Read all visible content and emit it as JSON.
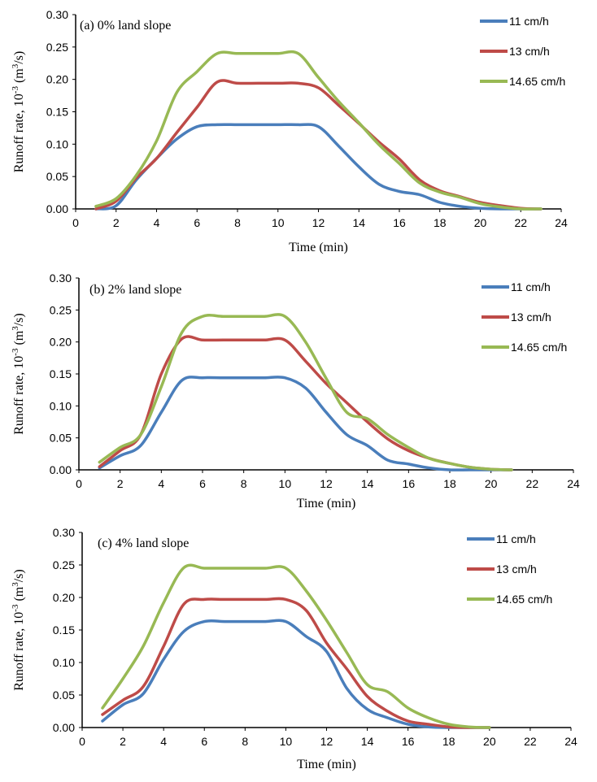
{
  "chart_data": [
    {
      "type": "line",
      "title": "(a) 0% land slope",
      "xlabel": "Time (min)",
      "ylabel": "Runoff rate, 10-3 (m3/s)",
      "xlim": [
        0,
        24
      ],
      "ylim": [
        0,
        0.3
      ],
      "xticks": [
        0,
        2,
        4,
        6,
        8,
        10,
        12,
        14,
        16,
        18,
        20,
        22,
        24
      ],
      "yticks": [
        "0.00",
        "0.05",
        "0.10",
        "0.15",
        "0.20",
        "0.25",
        "0.30"
      ],
      "legend_position": "top-right",
      "grid": false,
      "series": [
        {
          "name": "11 cm/h",
          "color": "#4a7ebb",
          "x": [
            1,
            2,
            3,
            4,
            5,
            6,
            7,
            8,
            9,
            10,
            11,
            12,
            13,
            14,
            15,
            16,
            17,
            18,
            19,
            20,
            21,
            22,
            23
          ],
          "y": [
            0.0,
            0.005,
            0.045,
            0.078,
            0.108,
            0.127,
            0.13,
            0.13,
            0.13,
            0.13,
            0.13,
            0.127,
            0.097,
            0.065,
            0.038,
            0.027,
            0.022,
            0.01,
            0.004,
            0.001,
            0.0,
            0.0,
            0.0
          ]
        },
        {
          "name": "13 cm/h",
          "color": "#be4b48",
          "x": [
            1,
            2,
            3,
            4,
            5,
            6,
            7,
            8,
            9,
            10,
            11,
            12,
            13,
            14,
            15,
            16,
            17,
            18,
            19,
            20,
            21,
            22,
            23
          ],
          "y": [
            0.0,
            0.012,
            0.048,
            0.078,
            0.118,
            0.157,
            0.196,
            0.194,
            0.194,
            0.194,
            0.194,
            0.187,
            0.16,
            0.132,
            0.103,
            0.077,
            0.045,
            0.028,
            0.019,
            0.01,
            0.005,
            0.001,
            0.0
          ]
        },
        {
          "name": "14.65 cm/h",
          "color": "#98b954",
          "x": [
            1,
            2,
            3,
            4,
            5,
            6,
            7,
            8,
            9,
            10,
            11,
            12,
            13,
            14,
            15,
            16,
            17,
            18,
            19,
            20,
            21,
            22,
            23
          ],
          "y": [
            0.004,
            0.016,
            0.052,
            0.105,
            0.18,
            0.212,
            0.24,
            0.24,
            0.24,
            0.24,
            0.24,
            0.203,
            0.166,
            0.133,
            0.099,
            0.07,
            0.04,
            0.026,
            0.018,
            0.008,
            0.003,
            0.0,
            0.0
          ]
        }
      ]
    },
    {
      "type": "line",
      "title": "(b) 2% land slope",
      "xlabel": "Time (min)",
      "ylabel": "Runoff rate, 10-3 (m3/s)",
      "xlim": [
        0,
        24
      ],
      "ylim": [
        0,
        0.3
      ],
      "xticks": [
        0,
        2,
        4,
        6,
        8,
        10,
        12,
        14,
        16,
        18,
        20,
        22,
        24
      ],
      "yticks": [
        "0.00",
        "0.05",
        "0.10",
        "0.15",
        "0.20",
        "0.25",
        "0.30"
      ],
      "legend_position": "top-right",
      "grid": false,
      "series": [
        {
          "name": "11 cm/h",
          "color": "#4a7ebb",
          "x": [
            1,
            2,
            3,
            4,
            5,
            6,
            7,
            8,
            9,
            10,
            11,
            12,
            13,
            14,
            15,
            16,
            17,
            18,
            19,
            20,
            21
          ],
          "y": [
            0.003,
            0.022,
            0.038,
            0.09,
            0.14,
            0.144,
            0.144,
            0.144,
            0.144,
            0.144,
            0.128,
            0.09,
            0.055,
            0.038,
            0.015,
            0.009,
            0.003,
            0.0,
            0.0,
            0.0,
            0.0
          ]
        },
        {
          "name": "13 cm/h",
          "color": "#be4b48",
          "x": [
            1,
            2,
            3,
            4,
            5,
            6,
            7,
            8,
            9,
            10,
            11,
            12,
            13,
            14,
            15,
            16,
            17,
            18,
            19,
            20,
            21
          ],
          "y": [
            0.005,
            0.03,
            0.055,
            0.15,
            0.205,
            0.203,
            0.203,
            0.203,
            0.203,
            0.203,
            0.17,
            0.135,
            0.105,
            0.075,
            0.048,
            0.03,
            0.018,
            0.01,
            0.004,
            0.001,
            0.0
          ]
        },
        {
          "name": "14.65 cm/h",
          "color": "#98b954",
          "x": [
            1,
            2,
            3,
            4,
            5,
            6,
            7,
            8,
            9,
            10,
            11,
            12,
            13,
            14,
            15,
            16,
            17,
            18,
            19,
            20,
            21
          ],
          "y": [
            0.012,
            0.035,
            0.055,
            0.13,
            0.215,
            0.24,
            0.24,
            0.24,
            0.24,
            0.24,
            0.2,
            0.143,
            0.09,
            0.08,
            0.055,
            0.035,
            0.018,
            0.01,
            0.004,
            0.001,
            0.0
          ]
        }
      ]
    },
    {
      "type": "line",
      "title": "(c) 4% land slope",
      "xlabel": "Time (min)",
      "ylabel": "Runoff rate, 10-3 (m3/s)",
      "xlim": [
        0,
        24
      ],
      "ylim": [
        0,
        0.3
      ],
      "xticks": [
        0,
        2,
        4,
        6,
        8,
        10,
        12,
        14,
        16,
        18,
        20,
        22,
        24
      ],
      "yticks": [
        "0.00",
        "0.05",
        "0.10",
        "0.15",
        "0.20",
        "0.25",
        "0.30"
      ],
      "legend_position": "top-right",
      "grid": false,
      "series": [
        {
          "name": "11 cm/h",
          "color": "#4a7ebb",
          "x": [
            1,
            2,
            3,
            4,
            5,
            6,
            7,
            8,
            9,
            10,
            11,
            12,
            13,
            14,
            15,
            16,
            17,
            18,
            19,
            20
          ],
          "y": [
            0.01,
            0.035,
            0.052,
            0.105,
            0.148,
            0.163,
            0.163,
            0.163,
            0.163,
            0.163,
            0.14,
            0.117,
            0.06,
            0.028,
            0.015,
            0.005,
            0.001,
            0.0,
            0.0,
            0.0
          ]
        },
        {
          "name": "13 cm/h",
          "color": "#be4b48",
          "x": [
            1,
            2,
            3,
            4,
            5,
            6,
            7,
            8,
            9,
            10,
            11,
            12,
            13,
            14,
            15,
            16,
            17,
            18,
            19,
            20
          ],
          "y": [
            0.02,
            0.042,
            0.063,
            0.125,
            0.19,
            0.197,
            0.197,
            0.197,
            0.197,
            0.197,
            0.18,
            0.13,
            0.09,
            0.048,
            0.025,
            0.01,
            0.005,
            0.001,
            0.0,
            0.0
          ]
        },
        {
          "name": "14.65 cm/h",
          "color": "#98b954",
          "x": [
            1,
            2,
            3,
            4,
            5,
            6,
            7,
            8,
            9,
            10,
            11,
            12,
            13,
            14,
            15,
            16,
            17,
            18,
            19,
            20
          ],
          "y": [
            0.03,
            0.075,
            0.125,
            0.192,
            0.246,
            0.245,
            0.245,
            0.245,
            0.245,
            0.245,
            0.21,
            0.165,
            0.115,
            0.066,
            0.055,
            0.03,
            0.015,
            0.005,
            0.001,
            0.0
          ]
        }
      ]
    }
  ]
}
